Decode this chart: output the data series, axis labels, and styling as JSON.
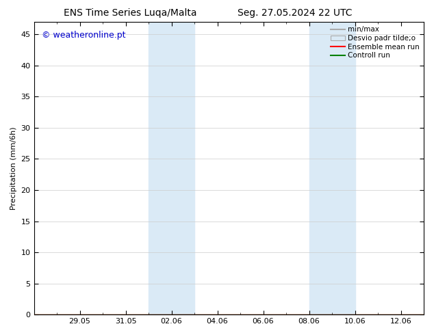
{
  "title_left": "ENS Time Series Luqa/Malta",
  "title_right": "Seg. 27.05.2024 22 UTC",
  "ylabel": "Precipitation (mm/6h)",
  "ylim": [
    0,
    47
  ],
  "yticks": [
    0,
    5,
    10,
    15,
    20,
    25,
    30,
    35,
    40,
    45
  ],
  "x_start": "2024-05-27",
  "x_end": "2024-06-12",
  "xtick_dates": [
    "2024-05-29",
    "2024-05-31",
    "2024-06-02",
    "2024-06-04",
    "2024-06-06",
    "2024-06-08",
    "2024-06-10",
    "2024-06-12"
  ],
  "xtick_labels": [
    "29.05",
    "31.05",
    "02.06",
    "04.06",
    "06.06",
    "08.06",
    "10.06",
    "12.06"
  ],
  "shaded_regions": [
    {
      "x_start": "2024-06-01",
      "x_end": "2024-06-03",
      "color": "#daeaf6"
    },
    {
      "x_start": "2024-06-08",
      "x_end": "2024-06-10",
      "color": "#daeaf6"
    }
  ],
  "watermark": "© weatheronline.pt",
  "watermark_color": "#0000cc",
  "bg_color": "#ffffff",
  "plot_bg_color": "#ffffff",
  "border_color": "#000000",
  "grid_color": "#cccccc",
  "title_fontsize": 10,
  "label_fontsize": 8,
  "tick_fontsize": 8,
  "legend_fontsize": 7.5,
  "minmax_color": "#aaaaaa",
  "std_color": "#daeaf6",
  "std_edge_color": "#aaaaaa",
  "mean_color": "red",
  "control_color": "green"
}
